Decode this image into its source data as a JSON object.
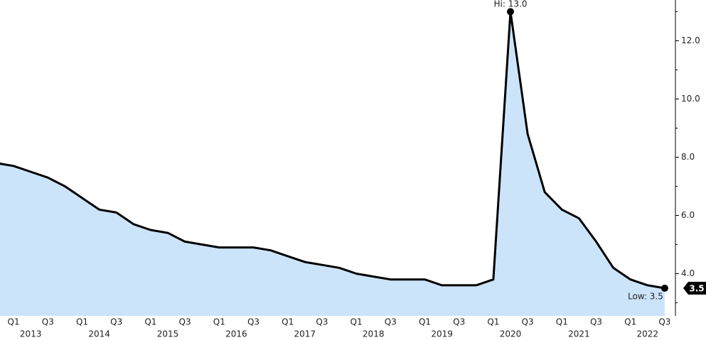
{
  "chart_data": {
    "type": "area",
    "categories": [
      null,
      "Q1",
      null,
      "Q3",
      null,
      "Q1",
      null,
      "Q3",
      null,
      "Q1",
      null,
      "Q3",
      null,
      "Q1",
      null,
      "Q3",
      null,
      "Q1",
      null,
      "Q3",
      null,
      "Q1",
      null,
      "Q3",
      null,
      "Q1",
      null,
      "Q3",
      null,
      "Q1",
      null,
      "Q3",
      null,
      "Q1",
      null,
      "Q3",
      null,
      "Q1",
      null,
      "Q3"
    ],
    "year_labels": [
      null,
      null,
      "2013",
      null,
      null,
      null,
      "2014",
      null,
      null,
      null,
      "2015",
      null,
      null,
      null,
      "2016",
      null,
      null,
      null,
      "2017",
      null,
      null,
      null,
      "2018",
      null,
      null,
      null,
      "2019",
      null,
      null,
      null,
      "2020",
      null,
      null,
      null,
      "2021",
      null,
      null,
      null,
      "2022",
      null
    ],
    "series": [
      {
        "color": "#000000",
        "fill": "#cce4fa",
        "values": [
          7.8,
          7.7,
          7.5,
          7.3,
          7.0,
          6.6,
          6.2,
          6.1,
          5.7,
          5.5,
          5.4,
          5.1,
          5.0,
          4.9,
          4.9,
          4.9,
          4.8,
          4.6,
          4.4,
          4.3,
          4.2,
          4.0,
          3.9,
          3.8,
          3.8,
          3.8,
          3.6,
          3.6,
          3.6,
          3.8,
          13.0,
          8.8,
          6.8,
          6.2,
          5.9,
          5.1,
          4.2,
          3.8,
          3.6,
          3.5
        ]
      }
    ],
    "ylim": [
      2.55,
      13.4
    ],
    "yticks": [
      {
        "value": 4,
        "label": "4.0"
      },
      {
        "value": 6,
        "label": "6.0"
      },
      {
        "value": 8,
        "label": "8.0"
      },
      {
        "value": 10,
        "label": "10.0"
      },
      {
        "value": 12,
        "label": "12.0"
      }
    ],
    "hi_label": "Hi: 13.0",
    "low_label": "Low: 3.5"
  }
}
